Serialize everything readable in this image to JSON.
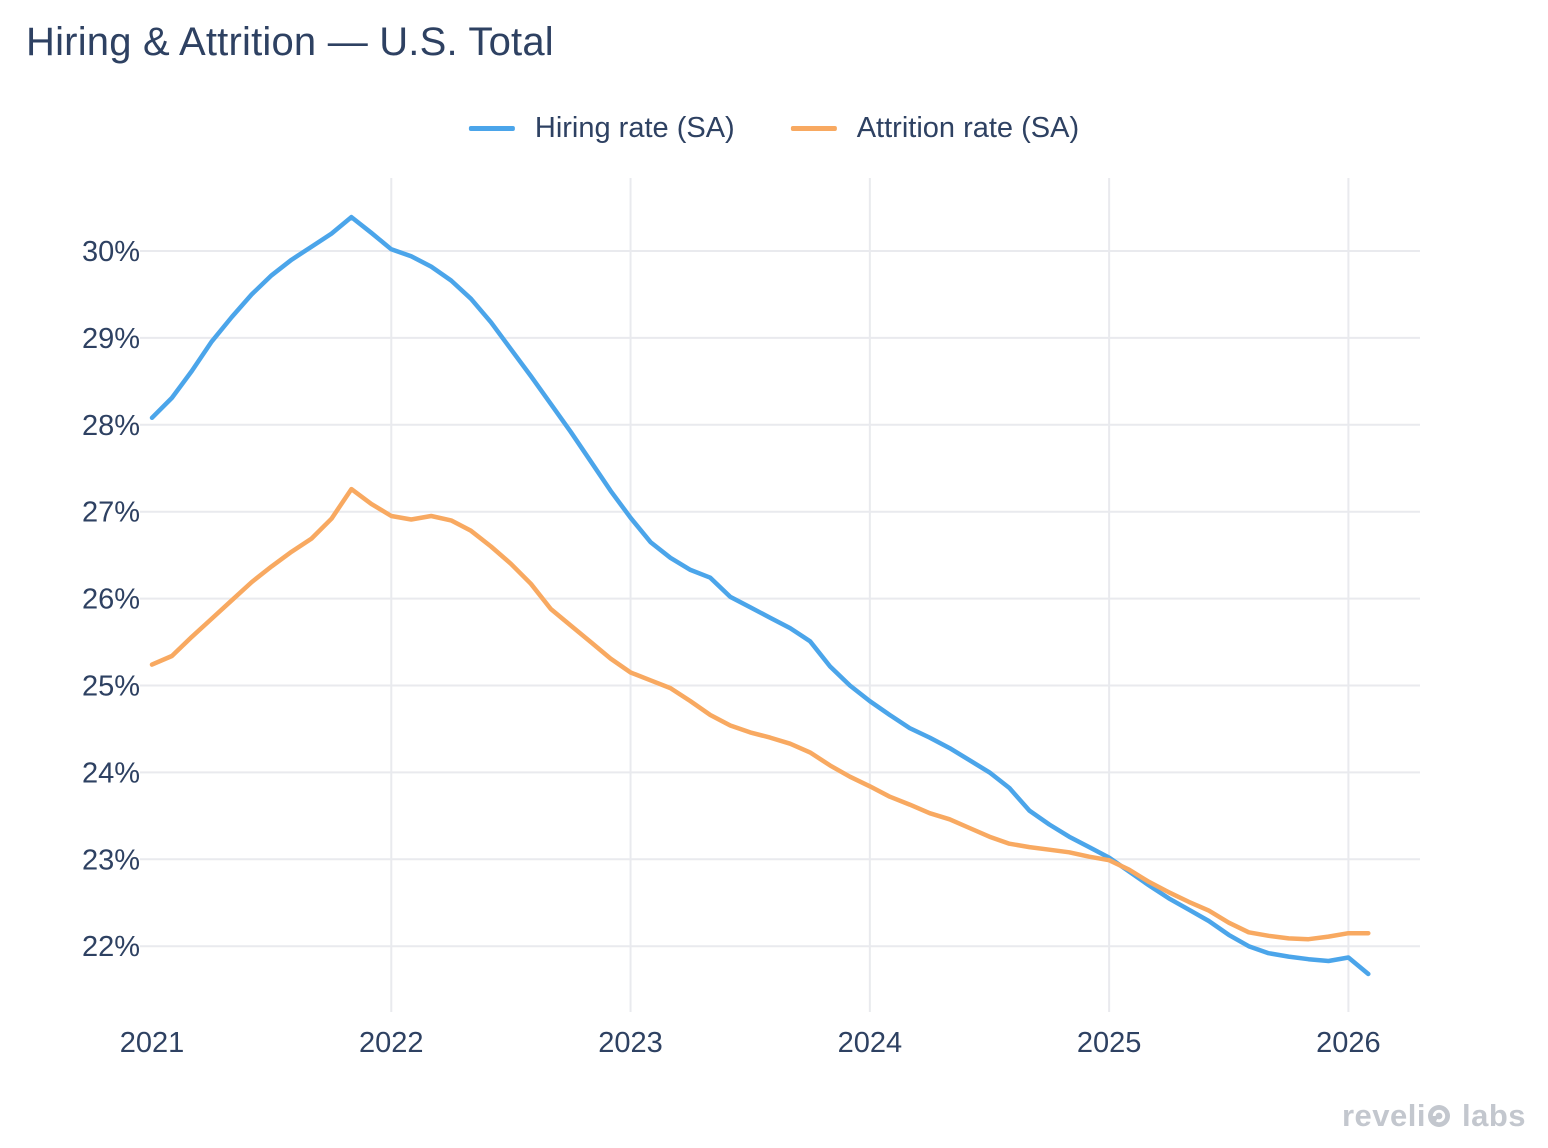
{
  "title": "Hiring & Attrition — U.S. Total",
  "legend": {
    "hiring_label": "Hiring rate (SA)",
    "attrition_label": "Attrition rate (SA)"
  },
  "watermark": {
    "brand": "revelio labs",
    "part1": "reveli",
    "part2": "labs"
  },
  "colors": {
    "hiring_line": "#4ba5ea",
    "attrition_line": "#f8a961",
    "text_navy": "#2e4162",
    "gridline": "#e9eaee",
    "watermark_gray": "#c3c7ce",
    "background": "#ffffff"
  },
  "chart_data": {
    "type": "line",
    "title": "Hiring & Attrition — U.S. Total",
    "xlabel": "",
    "ylabel": "",
    "x_tick_labels": [
      "2021",
      "2022",
      "2023",
      "2024",
      "2025",
      "2026"
    ],
    "y_tick_labels": [
      "22%",
      "23%",
      "24%",
      "25%",
      "26%",
      "27%",
      "28%",
      "29%",
      "30%"
    ],
    "y_ticks": [
      22,
      23,
      24,
      25,
      26,
      27,
      28,
      29,
      30
    ],
    "ylim": [
      21.55,
      30.85
    ],
    "grid": true,
    "legend_position": "top-center",
    "x_frequency": "monthly",
    "months": [
      "2021-01",
      "2021-02",
      "2021-03",
      "2021-04",
      "2021-05",
      "2021-06",
      "2021-07",
      "2021-08",
      "2021-09",
      "2021-10",
      "2021-11",
      "2021-12",
      "2022-01",
      "2022-02",
      "2022-03",
      "2022-04",
      "2022-05",
      "2022-06",
      "2022-07",
      "2022-08",
      "2022-09",
      "2022-10",
      "2022-11",
      "2022-12",
      "2023-01",
      "2023-02",
      "2023-03",
      "2023-04",
      "2023-05",
      "2023-06",
      "2023-07",
      "2023-08",
      "2023-09",
      "2023-10",
      "2023-11",
      "2023-12",
      "2024-01",
      "2024-02",
      "2024-03",
      "2024-04",
      "2024-05",
      "2024-06",
      "2024-07",
      "2024-08",
      "2024-09",
      "2024-10",
      "2024-11",
      "2024-12",
      "2025-01",
      "2025-02",
      "2025-03",
      "2025-04",
      "2025-05",
      "2025-06",
      "2025-07",
      "2025-08",
      "2025-09",
      "2025-10",
      "2025-11",
      "2025-12",
      "2026-01",
      "2026-02"
    ],
    "series": [
      {
        "name": "Hiring rate (SA)",
        "color": "#4ba5ea",
        "unit": "%",
        "values": [
          28.08,
          28.31,
          28.62,
          28.96,
          29.24,
          29.5,
          29.72,
          29.9,
          30.05,
          30.2,
          30.39,
          30.21,
          30.02,
          29.94,
          29.82,
          29.66,
          29.45,
          29.18,
          28.87,
          28.56,
          28.24,
          27.92,
          27.58,
          27.24,
          26.93,
          26.65,
          26.47,
          26.33,
          26.24,
          26.02,
          25.9,
          25.78,
          25.66,
          25.51,
          25.22,
          25.0,
          24.82,
          24.66,
          24.51,
          24.4,
          24.28,
          24.14,
          24.0,
          23.82,
          23.56,
          23.4,
          23.26,
          23.14,
          23.02,
          22.86,
          22.7,
          22.55,
          22.42,
          22.29,
          22.13,
          22.0,
          21.92,
          21.88,
          21.85,
          21.83,
          21.87,
          21.68
        ]
      },
      {
        "name": "Attrition rate (SA)",
        "color": "#f8a961",
        "unit": "%",
        "values": [
          25.24,
          25.34,
          25.56,
          25.77,
          25.98,
          26.19,
          26.37,
          26.54,
          26.69,
          26.92,
          27.26,
          27.09,
          26.95,
          26.91,
          26.95,
          26.9,
          26.78,
          26.6,
          26.4,
          26.17,
          25.88,
          25.69,
          25.5,
          25.31,
          25.15,
          25.06,
          24.97,
          24.82,
          24.66,
          24.54,
          24.46,
          24.4,
          24.33,
          24.23,
          24.08,
          23.95,
          23.84,
          23.72,
          23.63,
          23.53,
          23.46,
          23.36,
          23.26,
          23.18,
          23.14,
          23.11,
          23.08,
          23.03,
          22.99,
          22.88,
          22.74,
          22.62,
          22.51,
          22.41,
          22.27,
          22.16,
          22.12,
          22.09,
          22.08,
          22.11,
          22.15,
          22.15
        ]
      }
    ]
  }
}
